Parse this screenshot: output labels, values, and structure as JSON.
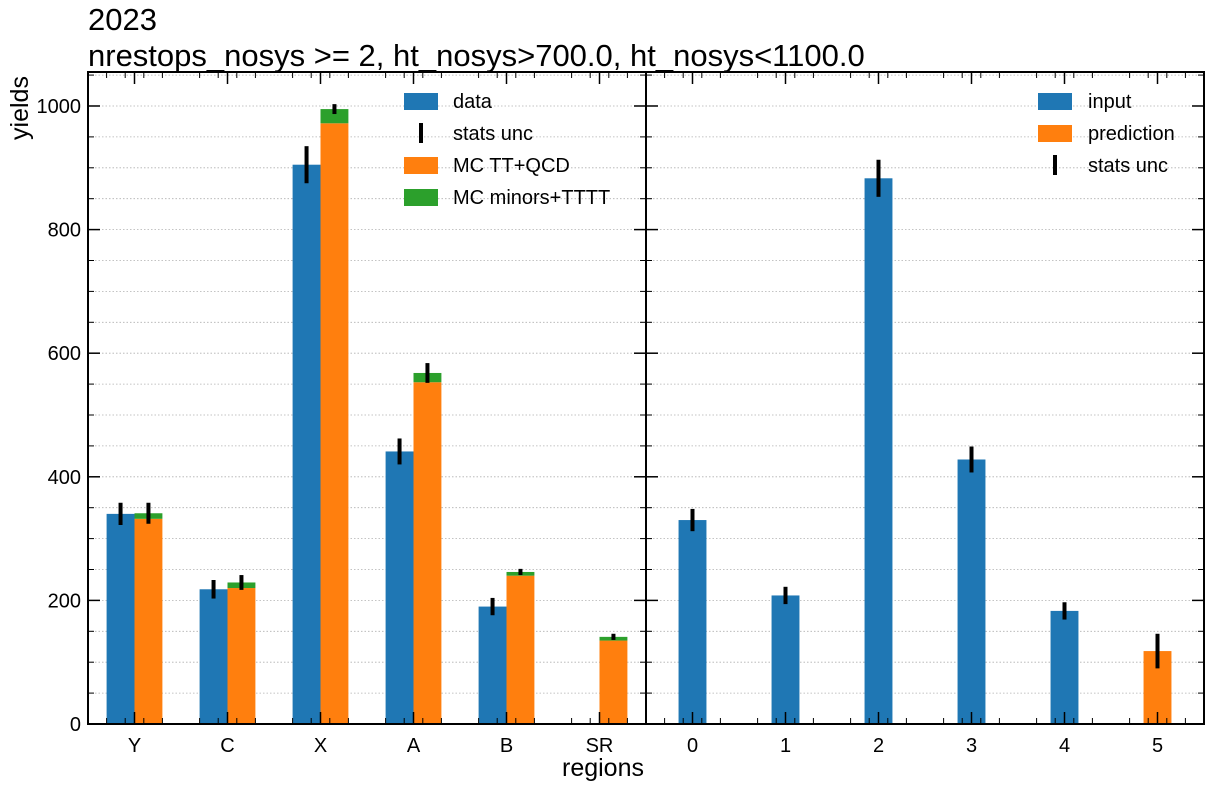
{
  "title": {
    "line1": "2023",
    "line2": "nrestops_nosys >= 2, ht_nosys>700.0, ht_nosys<1100.0"
  },
  "colors": {
    "blue": "#1f77b4",
    "orange": "#ff7f0e",
    "green": "#2ca02c",
    "errorbar": "#000000",
    "grid": "#b0b0b0"
  },
  "chart_data": [
    {
      "type": "bar",
      "panel": "left",
      "categories": [
        "Y",
        "C",
        "X",
        "A",
        "B",
        "SR"
      ],
      "xlabel": "regions",
      "ylabel": "yields",
      "ylim": [
        0,
        1055
      ],
      "yticks": [
        0,
        200,
        400,
        600,
        800,
        1000
      ],
      "grid": true,
      "legend_placement": "top-right",
      "legend": [
        "data",
        "stats unc",
        "MC TT+QCD",
        "MC minors+TTTT"
      ],
      "series": [
        {
          "name": "data",
          "color": "#1f77b4",
          "values": [
            340,
            218,
            905,
            441,
            190,
            null
          ],
          "errors": [
            18,
            15,
            30,
            21,
            14,
            null
          ]
        },
        {
          "name": "MC TT+QCD",
          "color": "#ff7f0e",
          "stack_group": "mc",
          "values": [
            332,
            220,
            972,
            553,
            240,
            135
          ]
        },
        {
          "name": "MC minors+TTTT",
          "color": "#2ca02c",
          "stack_group": "mc",
          "values": [
            9,
            9,
            23,
            15,
            6,
            6
          ]
        }
      ],
      "stack_errors": [
        17,
        12,
        8,
        16,
        5,
        5
      ]
    },
    {
      "type": "bar",
      "panel": "right",
      "categories": [
        "0",
        "1",
        "2",
        "3",
        "4",
        "5"
      ],
      "ylim": [
        0,
        1055
      ],
      "grid": true,
      "legend_placement": "top-right",
      "legend": [
        "input",
        "prediction",
        "stats unc"
      ],
      "series": [
        {
          "name": "input",
          "color": "#1f77b4",
          "values": [
            330,
            208,
            883,
            428,
            183,
            null
          ],
          "errors": [
            18,
            14,
            30,
            21,
            14,
            null
          ]
        },
        {
          "name": "prediction",
          "color": "#ff7f0e",
          "values": [
            null,
            null,
            null,
            null,
            null,
            118
          ],
          "errors": [
            null,
            null,
            null,
            null,
            null,
            28
          ]
        }
      ]
    }
  ]
}
